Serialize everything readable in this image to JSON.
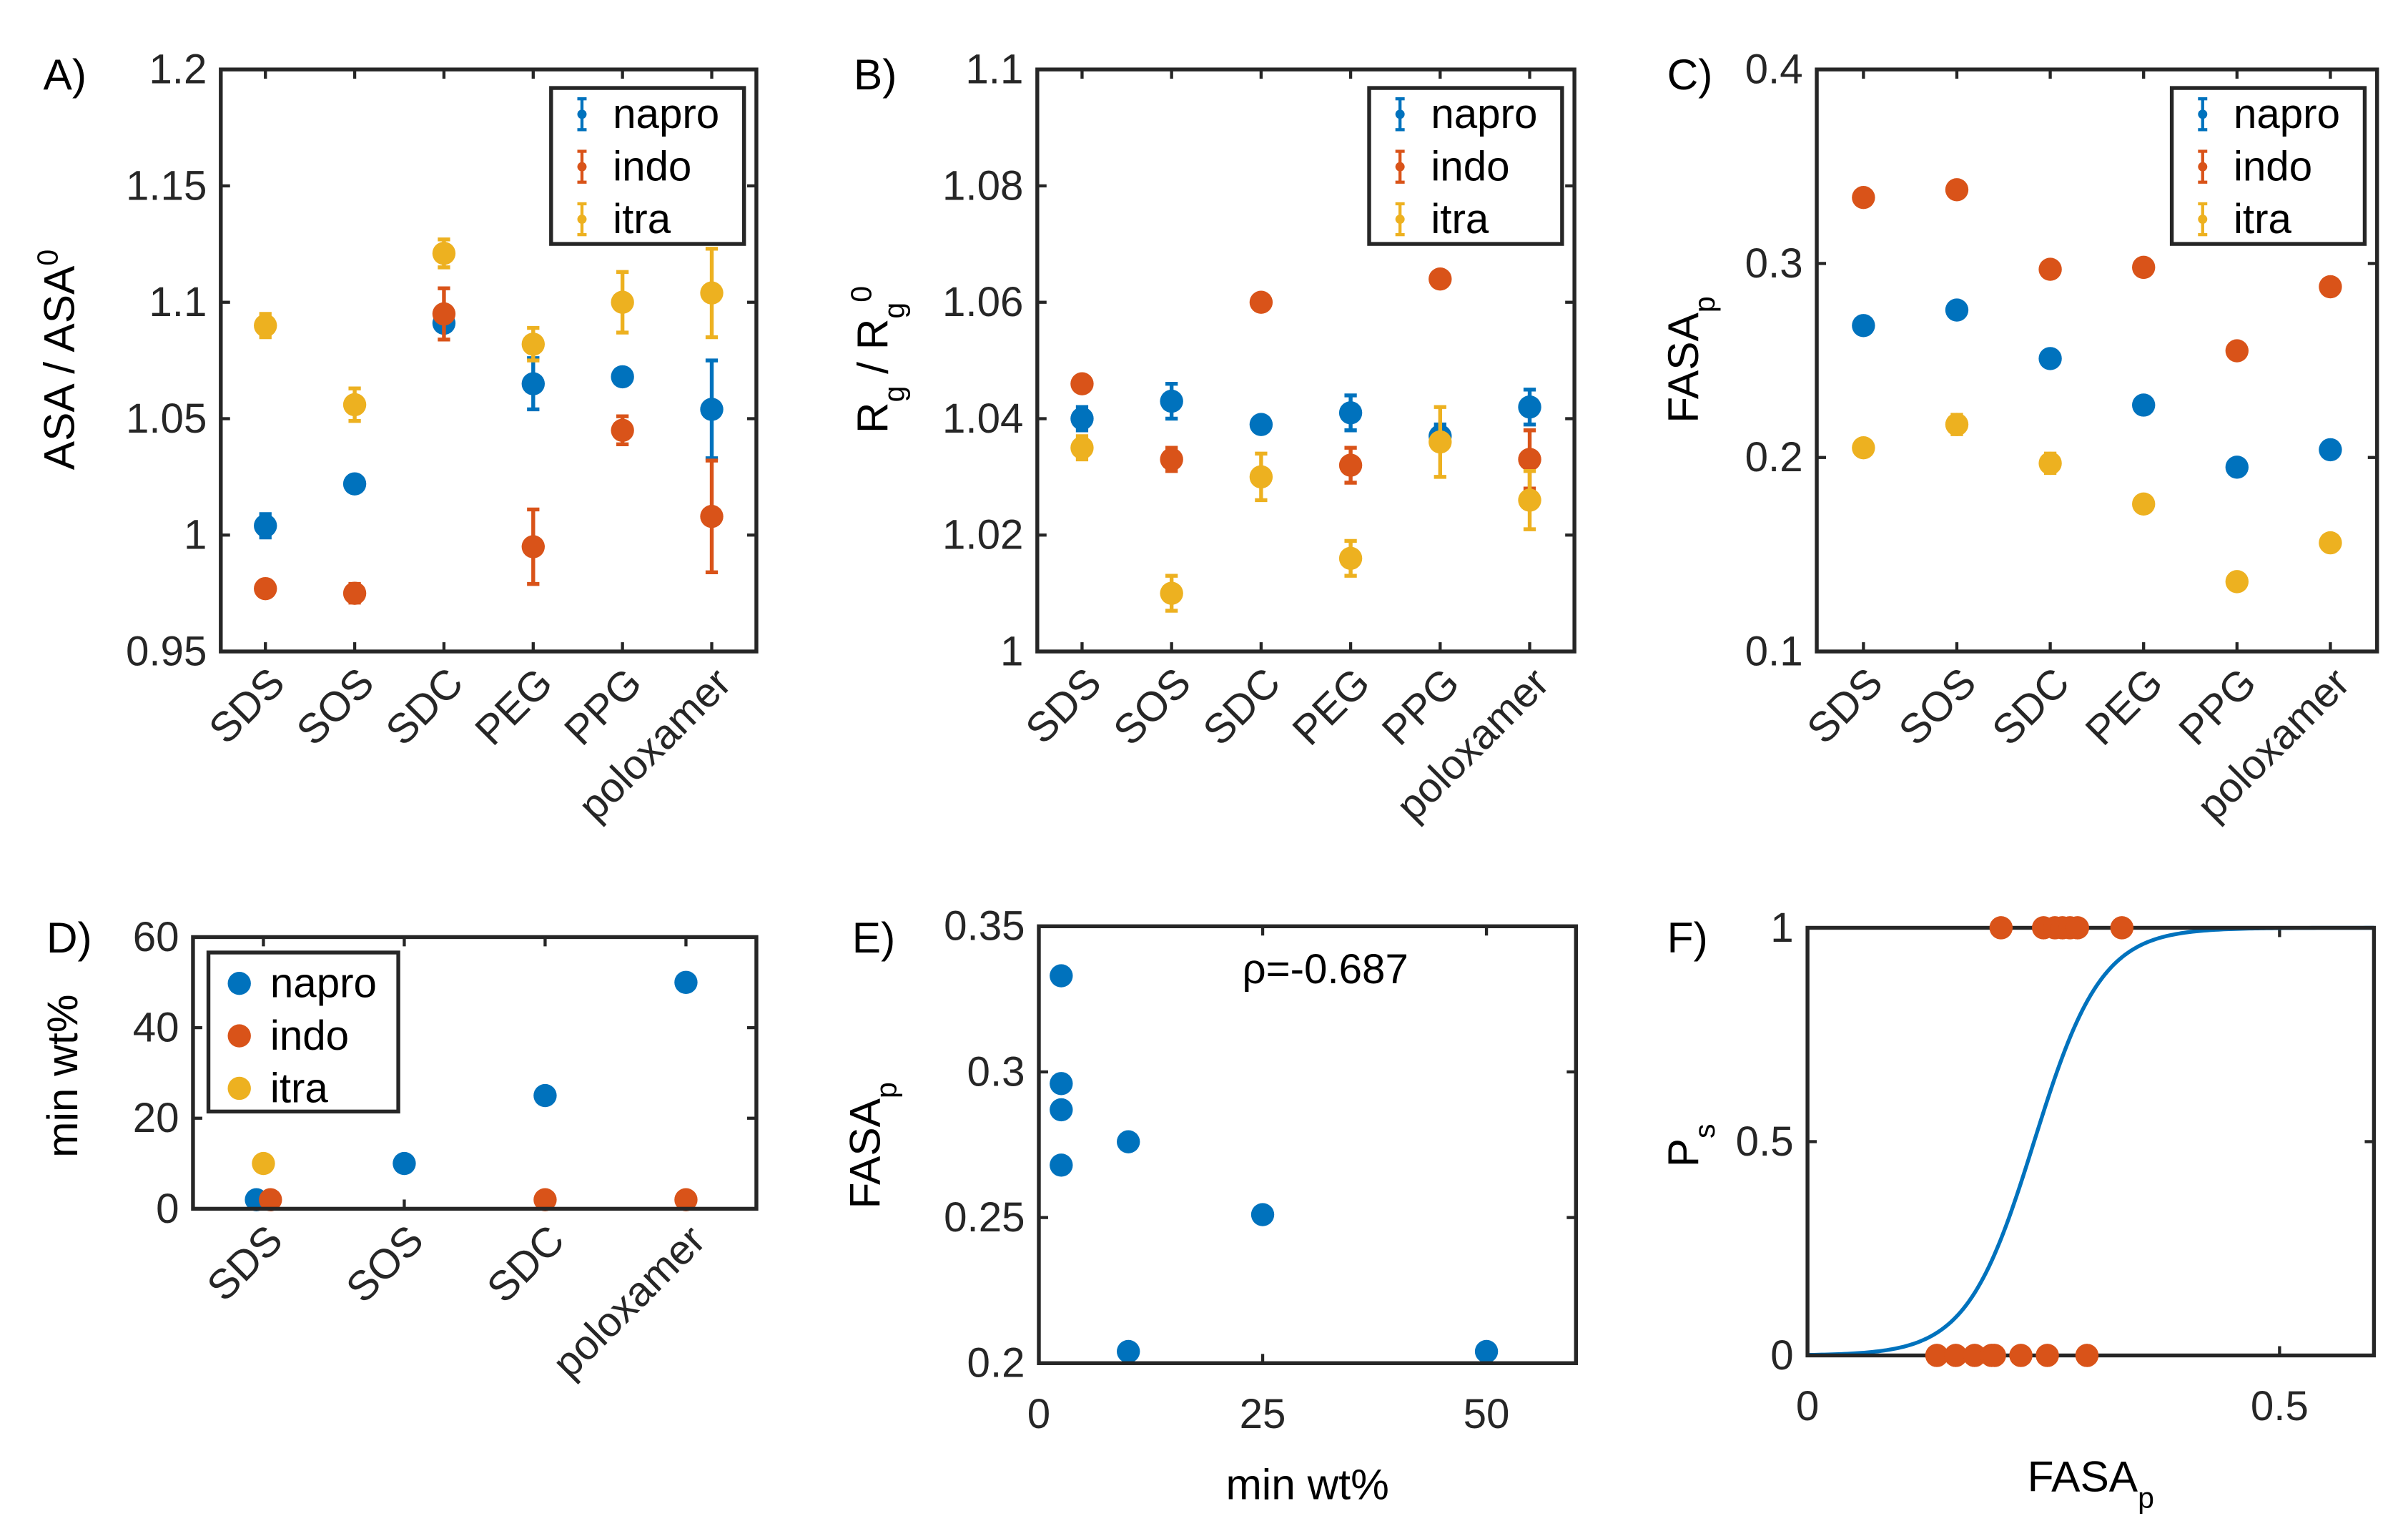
{
  "colors": {
    "napro": "#0072BD",
    "indo": "#D95319",
    "itra": "#EDB120",
    "axis": "#262626"
  },
  "chart_data": [
    {
      "panel": "A)",
      "type": "scatter",
      "categories": [
        "SDS",
        "SOS",
        "SDC",
        "PEG",
        "PPG",
        "poloxamer"
      ],
      "ylabel": [
        {
          "t": "ASA / ASA"
        },
        {
          "t": "0",
          "s": "sup"
        }
      ],
      "ylim": [
        0.95,
        1.2
      ],
      "yticks": [
        0.95,
        1,
        1.05,
        1.1,
        1.15,
        1.2
      ],
      "yticklabels": [
        "0.95",
        "1",
        "1.05",
        "1.1",
        "1.15",
        "1.2"
      ],
      "legend": "top-right",
      "legend_style": "errorbar",
      "series": [
        {
          "name": "napro",
          "values": [
            1.004,
            1.022,
            1.091,
            1.065,
            1.068,
            1.054
          ],
          "err": [
            0.005,
            0.002,
            0.003,
            0.011,
            0.002,
            0.021
          ]
        },
        {
          "name": "indo",
          "values": [
            0.977,
            0.975,
            1.095,
            0.995,
            1.045,
            1.008
          ],
          "err": [
            0.002,
            0.004,
            0.011,
            0.016,
            0.006,
            0.024
          ]
        },
        {
          "name": "itra",
          "values": [
            1.09,
            1.056,
            1.121,
            1.082,
            1.1,
            1.104
          ],
          "err": [
            0.005,
            0.007,
            0.006,
            0.007,
            0.013,
            0.019
          ]
        }
      ]
    },
    {
      "panel": "B)",
      "type": "scatter",
      "categories": [
        "SDS",
        "SOS",
        "SDC",
        "PEG",
        "PPG",
        "poloxamer"
      ],
      "ylabel": [
        {
          "t": "R"
        },
        {
          "t": "g",
          "s": "sub"
        },
        {
          "t": " / R"
        },
        {
          "t": "g",
          "s": "sub"
        },
        {
          "t": "0",
          "s": "sup"
        }
      ],
      "ylim": [
        1.0,
        1.1
      ],
      "yticks": [
        1,
        1.02,
        1.04,
        1.06,
        1.08,
        1.1
      ],
      "yticklabels": [
        "1",
        "1.02",
        "1.04",
        "1.06",
        "1.08",
        "1.1"
      ],
      "legend": "top-right",
      "legend_style": "errorbar",
      "series": [
        {
          "name": "napro",
          "values": [
            1.04,
            1.043,
            1.039,
            1.041,
            1.037,
            1.042
          ],
          "err": [
            0.002,
            0.003,
            0.001,
            0.003,
            0.002,
            0.003
          ]
        },
        {
          "name": "indo",
          "values": [
            1.046,
            1.033,
            1.06,
            1.032,
            1.064,
            1.033
          ],
          "err": [
            0.001,
            0.002,
            0.001,
            0.003,
            0.001,
            0.005
          ]
        },
        {
          "name": "itra",
          "values": [
            1.035,
            1.01,
            1.03,
            1.016,
            1.036,
            1.026
          ],
          "err": [
            0.002,
            0.003,
            0.004,
            0.003,
            0.006,
            0.005
          ]
        }
      ]
    },
    {
      "panel": "C)",
      "type": "scatter",
      "categories": [
        "SDS",
        "SOS",
        "SDC",
        "PEG",
        "PPG",
        "poloxamer"
      ],
      "ylabel": [
        {
          "t": "FASA"
        },
        {
          "t": "p",
          "s": "sub"
        }
      ],
      "ylim": [
        0.1,
        0.4
      ],
      "yticks": [
        0.1,
        0.2,
        0.3,
        0.4
      ],
      "yticklabels": [
        "0.1",
        "0.2",
        "0.3",
        "0.4"
      ],
      "legend": "top-right",
      "legend_style": "errorbar",
      "series": [
        {
          "name": "napro",
          "values": [
            0.268,
            0.276,
            0.251,
            0.227,
            0.195,
            0.204
          ],
          "err": [
            0.002,
            0.002,
            0.002,
            0.002,
            0.002,
            0.002
          ]
        },
        {
          "name": "indo",
          "values": [
            0.334,
            0.338,
            0.297,
            0.298,
            0.255,
            0.288
          ],
          "err": [
            0.002,
            0.002,
            0.002,
            0.002,
            0.002,
            0.002
          ]
        },
        {
          "name": "itra",
          "values": [
            0.205,
            0.217,
            0.197,
            0.176,
            0.136,
            0.156
          ],
          "err": [
            0.002,
            0.005,
            0.005,
            0.002,
            0.002,
            0.002
          ]
        }
      ]
    },
    {
      "panel": "D)",
      "type": "scatter",
      "categories": [
        "SDS",
        "SOS",
        "SDC",
        "poloxamer"
      ],
      "ylabel": [
        {
          "t": "min wt%"
        }
      ],
      "ylim": [
        0,
        60
      ],
      "yticks": [
        0,
        20,
        40,
        60
      ],
      "yticklabels": [
        "0",
        "20",
        "40",
        "60"
      ],
      "legend": "top-left",
      "legend_style": "marker",
      "series": [
        {
          "name": "napro",
          "values": [
            2,
            10,
            25,
            50
          ]
        },
        {
          "name": "indo",
          "values": [
            2,
            null,
            2,
            2
          ]
        },
        {
          "name": "itra",
          "values": [
            10,
            null,
            null,
            null
          ]
        }
      ]
    },
    {
      "panel": "E)",
      "type": "scatter",
      "xlabel": [
        {
          "t": "min wt%"
        }
      ],
      "ylabel": [
        {
          "t": "FASA"
        },
        {
          "t": "p",
          "s": "sub"
        }
      ],
      "xlim": [
        0,
        60
      ],
      "ylim": [
        0.2,
        0.35
      ],
      "xticks": [
        0,
        25,
        50
      ],
      "xticklabels": [
        "0",
        "25",
        "50"
      ],
      "yticks": [
        0.2,
        0.25,
        0.3,
        0.35
      ],
      "yticklabels": [
        "0.2",
        "0.25",
        "0.3",
        "0.35"
      ],
      "annotation": "ρ=-0.687",
      "points": [
        [
          2.5,
          0.333
        ],
        [
          2.5,
          0.296
        ],
        [
          2.5,
          0.287
        ],
        [
          2.5,
          0.268
        ],
        [
          10,
          0.276
        ],
        [
          25,
          0.251
        ],
        [
          10,
          0.204
        ],
        [
          50,
          0.204
        ]
      ]
    },
    {
      "panel": "F)",
      "type": "scatter+line",
      "xlabel": [
        {
          "t": "FASA"
        },
        {
          "t": "p",
          "s": "sub"
        }
      ],
      "ylabel": [
        {
          "t": "P"
        },
        {
          "t": "s",
          "s": "sub"
        }
      ],
      "xlim": [
        0,
        0.6
      ],
      "ylim": [
        0,
        1
      ],
      "xticks": [
        0,
        0.5
      ],
      "xticklabels": [
        "0",
        "0.5"
      ],
      "yticks": [
        0,
        0.5,
        1
      ],
      "yticklabels": [
        "0",
        "0.5",
        "1"
      ],
      "points_y1": [
        0.205,
        0.25,
        0.262,
        0.27,
        0.278,
        0.286,
        0.333
      ],
      "points_y0": [
        0.137,
        0.157,
        0.177,
        0.195,
        0.198,
        0.226,
        0.254,
        0.296
      ],
      "fit": {
        "type": "logistic",
        "midpoint": 0.24,
        "slope": 28
      }
    }
  ]
}
